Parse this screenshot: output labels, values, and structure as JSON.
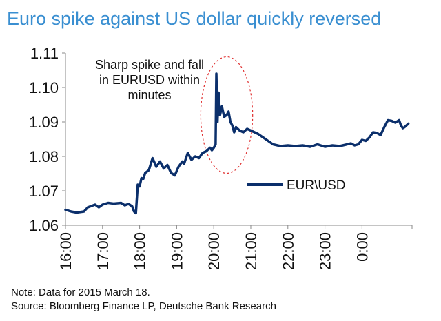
{
  "title": "Euro spike against US dollar quickly reversed",
  "chart_data": {
    "type": "line",
    "title": "Euro spike against US dollar quickly reversed",
    "xlabel": "",
    "ylabel": "",
    "ylim": [
      1.06,
      1.11
    ],
    "yticks": [
      "1.06",
      "1.07",
      "1.08",
      "1.09",
      "1.10",
      "1.11"
    ],
    "xticks": [
      "16:00",
      "17:00",
      "18:00",
      "19:00",
      "20:00",
      "21:00",
      "22:00",
      "23:00",
      "0:00"
    ],
    "grid": false,
    "legend_position": "center-right",
    "series": [
      {
        "name": "EUR\\USD",
        "color": "#0b2f6b",
        "x": [
          0.0,
          0.15,
          0.3,
          0.5,
          0.6,
          0.8,
          0.9,
          1.0,
          1.15,
          1.3,
          1.5,
          1.6,
          1.7,
          1.8,
          1.85,
          1.9,
          1.95,
          2.0,
          2.05,
          2.1,
          2.15,
          2.25,
          2.35,
          2.45,
          2.55,
          2.65,
          2.75,
          2.85,
          2.95,
          3.05,
          3.15,
          3.2,
          3.3,
          3.4,
          3.5,
          3.6,
          3.7,
          3.8,
          3.9,
          3.95,
          4.0,
          4.05,
          4.07,
          4.1,
          4.13,
          4.17,
          4.22,
          4.28,
          4.35,
          4.4,
          4.45,
          4.5,
          4.55,
          4.6,
          4.7,
          4.8,
          4.9,
          5.0,
          5.1,
          5.2,
          5.4,
          5.6,
          5.8,
          6.0,
          6.2,
          6.4,
          6.6,
          6.8,
          7.0,
          7.2,
          7.4,
          7.6,
          7.7,
          7.8,
          7.9,
          8.0,
          8.1,
          8.2,
          8.3,
          8.4,
          8.5,
          8.6,
          8.7,
          8.8,
          8.9,
          9.0,
          9.05,
          9.1,
          9.15,
          9.25
        ],
        "values": [
          1.0645,
          1.064,
          1.0637,
          1.064,
          1.0652,
          1.066,
          1.0652,
          1.066,
          1.0665,
          1.0663,
          1.0665,
          1.0658,
          1.0662,
          1.0655,
          1.064,
          1.0635,
          1.0718,
          1.0713,
          1.0737,
          1.0735,
          1.0752,
          1.076,
          1.0795,
          1.077,
          1.0785,
          1.0765,
          1.0775,
          1.0752,
          1.0745,
          1.077,
          1.0785,
          1.0778,
          1.081,
          1.079,
          1.08,
          1.0795,
          1.081,
          1.0815,
          1.0825,
          1.0818,
          1.0825,
          1.0835,
          1.104,
          1.09,
          1.0985,
          1.092,
          1.0945,
          1.0915,
          1.092,
          1.093,
          1.09,
          1.089,
          1.087,
          1.0885,
          1.0875,
          1.087,
          1.088,
          1.0875,
          1.087,
          1.0865,
          1.085,
          1.0835,
          1.083,
          1.0832,
          1.083,
          1.0832,
          1.0828,
          1.0835,
          1.0828,
          1.0832,
          1.083,
          1.0835,
          1.0838,
          1.0832,
          1.0835,
          1.0848,
          1.0845,
          1.0855,
          1.087,
          1.0868,
          1.0862,
          1.0885,
          1.0905,
          1.0903,
          1.0898,
          1.0905,
          1.089,
          1.0882,
          1.0885,
          1.0895
        ]
      }
    ],
    "annotations": [
      {
        "text_lines": [
          "Sharp spike and fall",
          "in EURUSD within",
          "minutes"
        ]
      }
    ],
    "shapes": [
      {
        "type": "dashed-ellipse",
        "color": "#e03030",
        "around": "spike",
        "x_center": 4.35,
        "y_center": 1.092,
        "x_halfwidth": 0.7,
        "y_halfwidth": 0.0169
      }
    ]
  },
  "footer": {
    "note": "Note: Data for 2015 March 18.",
    "source": "Source: Bloomberg Finance LP, Deutsche Bank Research"
  }
}
